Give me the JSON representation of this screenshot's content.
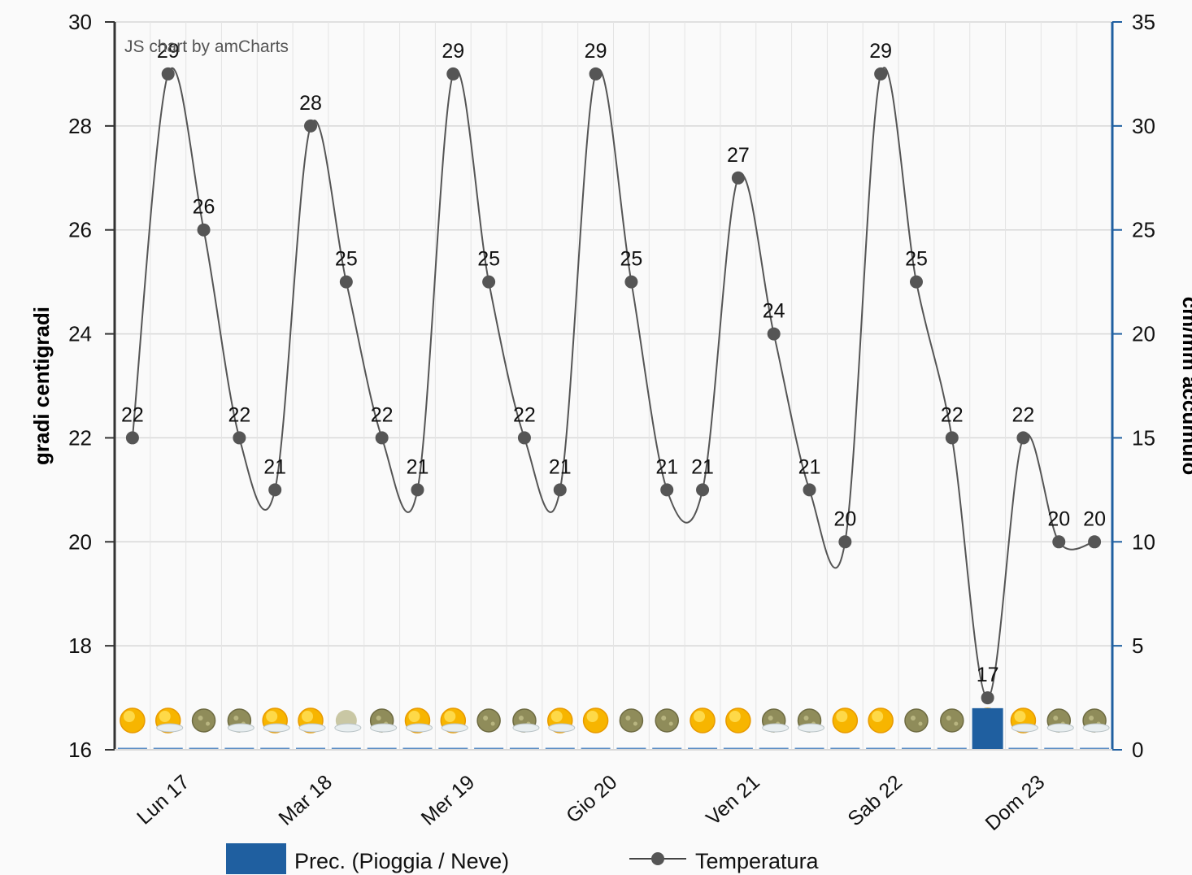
{
  "chart_data": {
    "type": "line",
    "credit": "JS chart by amCharts",
    "ylabel": "gradi centigradi",
    "y2label": "cm/mm accumulo",
    "ylim": [
      16,
      30
    ],
    "y2lim": [
      0,
      35
    ],
    "yticks": [
      16,
      18,
      20,
      22,
      24,
      26,
      28,
      30
    ],
    "y2ticks": [
      0,
      5,
      10,
      15,
      20,
      25,
      30,
      35
    ],
    "grid": true,
    "legend_position": "bottom",
    "day_labels": [
      "Lun 17",
      "Mar 18",
      "Mer 19",
      "Gio 20",
      "Ven 21",
      "Sab 22",
      "Dom 23"
    ],
    "series": [
      {
        "name": "Temperatura",
        "axis": "left",
        "color": "#555555",
        "values": [
          22,
          29,
          26,
          22,
          21,
          28,
          25,
          22,
          21,
          29,
          25,
          22,
          21,
          29,
          25,
          21,
          21,
          27,
          24,
          21,
          20,
          29,
          25,
          22,
          17,
          22,
          20,
          20
        ]
      },
      {
        "name": "Prec. (Pioggia / Neve)",
        "axis": "right",
        "type": "bar",
        "color": "#1f5fa0",
        "values": [
          0,
          0,
          0,
          0,
          0,
          0,
          0,
          0,
          0,
          0,
          0,
          0,
          0,
          0,
          0,
          0,
          0,
          0,
          0,
          0,
          0,
          0,
          0,
          0,
          2,
          0,
          0,
          0
        ]
      }
    ],
    "weather_icons": [
      "sun",
      "sun-cloud",
      "moon",
      "moon-cloud",
      "sun-haze",
      "sun-haze",
      "cloud",
      "moon-cloud",
      "sun-cloud",
      "sun-cloud",
      "moon",
      "moon-cloud",
      "sun-cloud",
      "sun",
      "moon",
      "moon",
      "sun",
      "sun",
      "moon-cloud",
      "moon-cloud",
      "sun",
      "sun",
      "moon",
      "moon",
      "sun-rain",
      "sun-cloud",
      "moon-cloud",
      "moon-cloud"
    ],
    "colors": {
      "line": "#555555",
      "bar": "#1f5fa0",
      "right_axis": "#1f5fa0",
      "left_axis": "#333333",
      "grid": "#d8d8d8"
    }
  }
}
